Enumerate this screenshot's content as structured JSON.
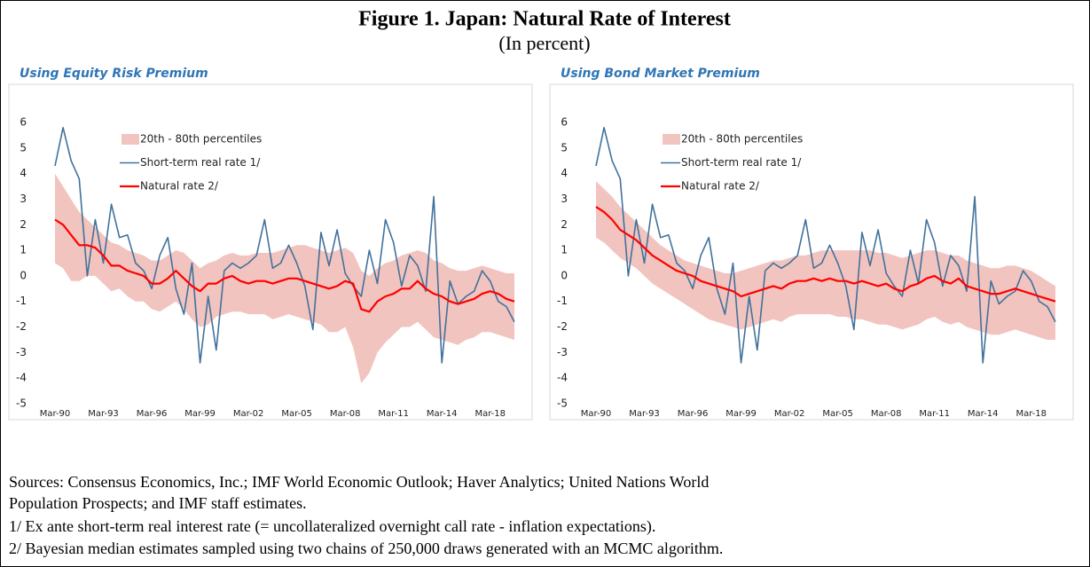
{
  "figure": {
    "title": "Figure 1. Japan: Natural Rate of Interest",
    "subtitle": "(In percent)",
    "notes": [
      "Sources: Consensus Economics, Inc.; IMF World Economic Outlook; Haver Analytics; United Nations World",
      "Population Prospects; and IMF staff estimates.",
      "1/ Ex ante short-term real interest rate (= uncollateralized overnight call rate - inflation expectations).",
      "2/ Bayesian median estimates sampled using two chains of 250,000 draws generated with an MCMC algorithm."
    ]
  },
  "chart_data": [
    {
      "type": "line",
      "title": "Using Equity Risk Premium",
      "legend": "upper left",
      "grid": false,
      "categories": [
        "Mar-90",
        null,
        null,
        null,
        null,
        null,
        "Mar-93",
        null,
        null,
        null,
        null,
        null,
        "Mar-96",
        null,
        null,
        null,
        null,
        null,
        "Mar-99",
        null,
        null,
        null,
        null,
        null,
        "Mar-02",
        null,
        null,
        null,
        null,
        null,
        "Mar-05",
        null,
        null,
        null,
        null,
        null,
        "Mar-08",
        null,
        null,
        null,
        null,
        null,
        "Mar-11",
        null,
        null,
        null,
        null,
        null,
        "Mar-14",
        null,
        null,
        null,
        null,
        null,
        "Mar-18",
        null,
        null,
        null
      ],
      "ylim": [
        -5,
        6
      ],
      "yticks": [
        -5,
        -4,
        -3,
        -2,
        -1,
        0,
        1,
        2,
        3,
        4,
        5,
        6
      ],
      "series": [
        {
          "name": "20th - 80th percentiles",
          "type": "band",
          "color": "#f2c4bf",
          "upper": [
            4.0,
            3.5,
            3.0,
            2.5,
            2.2,
            1.9,
            1.6,
            1.3,
            1.2,
            1.0,
            0.9,
            0.8,
            0.6,
            0.6,
            0.8,
            1.0,
            0.9,
            0.6,
            0.3,
            0.5,
            0.6,
            0.8,
            0.9,
            0.8,
            0.8,
            0.9,
            0.9,
            0.9,
            1.0,
            1.1,
            1.2,
            1.2,
            1.1,
            1.0,
            0.9,
            1.0,
            1.1,
            0.9,
            0.2,
            0.0,
            0.3,
            0.5,
            0.6,
            0.8,
            0.9,
            1.0,
            0.9,
            0.6,
            0.5,
            0.3,
            0.2,
            0.2,
            0.3,
            0.4,
            0.3,
            0.2,
            0.1,
            0.1
          ],
          "lower": [
            0.5,
            0.3,
            -0.2,
            -0.2,
            0.0,
            0.0,
            -0.3,
            -0.6,
            -0.5,
            -0.8,
            -1.0,
            -1.0,
            -1.3,
            -1.4,
            -1.2,
            -1.0,
            -1.3,
            -1.7,
            -2.0,
            -1.9,
            -1.6,
            -1.5,
            -1.4,
            -1.4,
            -1.5,
            -1.5,
            -1.5,
            -1.7,
            -1.6,
            -1.5,
            -1.6,
            -1.7,
            -1.8,
            -1.9,
            -2.2,
            -2.2,
            -2.0,
            -2.8,
            -4.2,
            -3.8,
            -3.0,
            -2.6,
            -2.3,
            -2.0,
            -2.0,
            -1.8,
            -2.1,
            -2.4,
            -2.5,
            -2.6,
            -2.7,
            -2.5,
            -2.4,
            -2.2,
            -2.2,
            -2.3,
            -2.4,
            -2.5
          ]
        },
        {
          "name": "Short-term real rate 1/",
          "color": "#41719c",
          "width": 1.6,
          "values": [
            4.3,
            5.8,
            4.5,
            3.8,
            0.0,
            2.2,
            0.5,
            2.8,
            1.5,
            1.6,
            0.5,
            0.2,
            -0.5,
            0.8,
            1.5,
            -0.5,
            -1.5,
            0.5,
            -3.4,
            -0.8,
            -2.9,
            0.2,
            0.5,
            0.3,
            0.5,
            0.8,
            2.2,
            0.3,
            0.5,
            1.2,
            0.5,
            -0.4,
            -2.1,
            1.7,
            0.4,
            1.8,
            0.1,
            -0.4,
            -0.8,
            1.0,
            -0.3,
            2.2,
            1.3,
            -0.4,
            0.8,
            0.4,
            -0.6,
            3.1,
            -3.4,
            -0.2,
            -1.1,
            -0.8,
            -0.6,
            0.2,
            -0.2,
            -1.0,
            -1.2,
            -1.8
          ]
        },
        {
          "name": "Natural rate 2/",
          "color": "#ff0000",
          "width": 2.2,
          "values": [
            2.2,
            2.0,
            1.6,
            1.2,
            1.2,
            1.1,
            0.8,
            0.4,
            0.4,
            0.2,
            0.1,
            0.0,
            -0.3,
            -0.3,
            -0.1,
            0.2,
            -0.1,
            -0.4,
            -0.6,
            -0.3,
            -0.3,
            -0.1,
            0.0,
            -0.2,
            -0.3,
            -0.2,
            -0.2,
            -0.3,
            -0.2,
            -0.1,
            -0.1,
            -0.2,
            -0.3,
            -0.4,
            -0.5,
            -0.4,
            -0.2,
            -0.3,
            -1.3,
            -1.4,
            -1.0,
            -0.8,
            -0.7,
            -0.5,
            -0.5,
            -0.2,
            -0.5,
            -0.7,
            -0.8,
            -1.0,
            -1.1,
            -1.0,
            -0.9,
            -0.7,
            -0.6,
            -0.7,
            -0.9,
            -1.0
          ]
        }
      ]
    },
    {
      "type": "line",
      "title": "Using Bond Market Premium",
      "legend": "upper left",
      "grid": false,
      "categories": [
        "Mar-90",
        null,
        null,
        null,
        null,
        null,
        "Mar-93",
        null,
        null,
        null,
        null,
        null,
        "Mar-96",
        null,
        null,
        null,
        null,
        null,
        "Mar-99",
        null,
        null,
        null,
        null,
        null,
        "Mar-02",
        null,
        null,
        null,
        null,
        null,
        "Mar-05",
        null,
        null,
        null,
        null,
        null,
        "Mar-08",
        null,
        null,
        null,
        null,
        null,
        "Mar-11",
        null,
        null,
        null,
        null,
        null,
        "Mar-14",
        null,
        null,
        null,
        null,
        null,
        "Mar-18",
        null,
        null,
        null
      ],
      "ylim": [
        -5,
        6
      ],
      "yticks": [
        -5,
        -4,
        -3,
        -2,
        -1,
        0,
        1,
        2,
        3,
        4,
        5,
        6
      ],
      "series": [
        {
          "name": "20th - 80th percentiles",
          "type": "band",
          "color": "#f2c4bf",
          "upper": [
            3.7,
            3.4,
            3.1,
            2.7,
            2.4,
            2.1,
            1.8,
            1.5,
            1.2,
            1.0,
            0.8,
            0.6,
            0.5,
            0.4,
            0.3,
            0.2,
            0.1,
            0.1,
            0.2,
            0.3,
            0.4,
            0.5,
            0.6,
            0.6,
            0.7,
            0.8,
            0.8,
            0.9,
            1.0,
            1.0,
            1.0,
            1.0,
            1.0,
            1.0,
            1.0,
            0.9,
            0.9,
            0.8,
            0.7,
            0.8,
            0.9,
            1.0,
            1.0,
            0.9,
            0.8,
            0.8,
            0.6,
            0.5,
            0.4,
            0.3,
            0.3,
            0.4,
            0.4,
            0.3,
            0.2,
            0.0,
            -0.2,
            -0.4
          ],
          "lower": [
            1.5,
            1.3,
            1.0,
            0.7,
            0.5,
            0.3,
            0.0,
            -0.3,
            -0.5,
            -0.7,
            -0.9,
            -1.1,
            -1.3,
            -1.5,
            -1.7,
            -1.8,
            -1.9,
            -2.0,
            -2.1,
            -2.0,
            -1.9,
            -1.8,
            -1.7,
            -1.8,
            -1.6,
            -1.5,
            -1.5,
            -1.5,
            -1.5,
            -1.5,
            -1.6,
            -1.6,
            -1.7,
            -1.7,
            -1.8,
            -1.9,
            -1.9,
            -2.0,
            -2.1,
            -2.0,
            -1.9,
            -1.7,
            -1.6,
            -1.8,
            -1.9,
            -1.8,
            -2.0,
            -2.1,
            -2.2,
            -2.3,
            -2.3,
            -2.2,
            -2.1,
            -2.2,
            -2.3,
            -2.4,
            -2.5,
            -2.5
          ]
        },
        {
          "name": "Short-term real rate 1/",
          "color": "#41719c",
          "width": 1.6,
          "values": [
            4.3,
            5.8,
            4.5,
            3.8,
            0.0,
            2.2,
            0.5,
            2.8,
            1.5,
            1.6,
            0.5,
            0.2,
            -0.5,
            0.8,
            1.5,
            -0.5,
            -1.5,
            0.5,
            -3.4,
            -0.8,
            -2.9,
            0.2,
            0.5,
            0.3,
            0.5,
            0.8,
            2.2,
            0.3,
            0.5,
            1.2,
            0.5,
            -0.4,
            -2.1,
            1.7,
            0.4,
            1.8,
            0.1,
            -0.4,
            -0.8,
            1.0,
            -0.3,
            2.2,
            1.3,
            -0.4,
            0.8,
            0.4,
            -0.6,
            3.1,
            -3.4,
            -0.2,
            -1.1,
            -0.8,
            -0.6,
            0.2,
            -0.2,
            -1.0,
            -1.2,
            -1.8
          ]
        },
        {
          "name": "Natural rate 2/",
          "color": "#ff0000",
          "width": 2.2,
          "values": [
            2.7,
            2.5,
            2.2,
            1.8,
            1.6,
            1.4,
            1.1,
            0.8,
            0.6,
            0.4,
            0.2,
            0.1,
            0.0,
            -0.2,
            -0.3,
            -0.4,
            -0.5,
            -0.6,
            -0.8,
            -0.7,
            -0.6,
            -0.5,
            -0.4,
            -0.5,
            -0.3,
            -0.2,
            -0.2,
            -0.1,
            -0.2,
            -0.1,
            -0.2,
            -0.2,
            -0.3,
            -0.2,
            -0.3,
            -0.4,
            -0.3,
            -0.5,
            -0.6,
            -0.4,
            -0.3,
            -0.1,
            0.0,
            -0.2,
            -0.3,
            -0.1,
            -0.4,
            -0.5,
            -0.6,
            -0.7,
            -0.7,
            -0.6,
            -0.5,
            -0.6,
            -0.7,
            -0.8,
            -0.9,
            -1.0
          ]
        }
      ]
    }
  ]
}
